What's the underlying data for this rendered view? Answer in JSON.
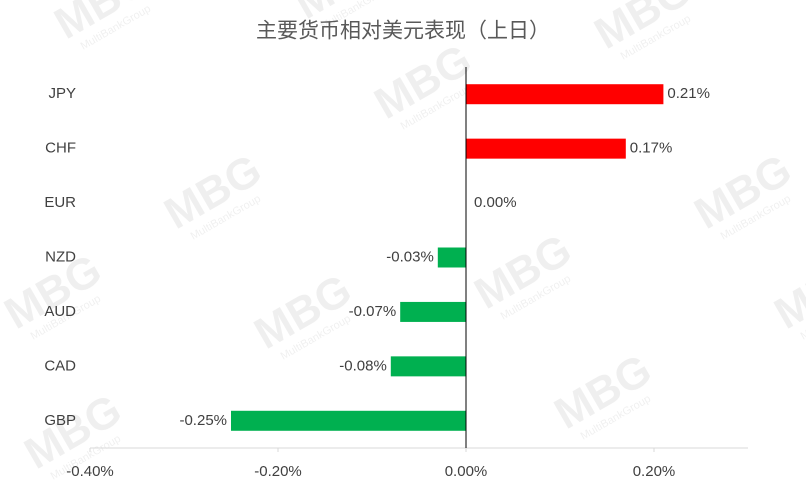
{
  "chart_data": {
    "type": "hbar",
    "title": "主要货币相对美元表现（上日）",
    "categories": [
      "JPY",
      "CHF",
      "EUR",
      "NZD",
      "AUD",
      "CAD",
      "GBP"
    ],
    "values": [
      0.21,
      0.17,
      0.0,
      -0.03,
      -0.07,
      -0.08,
      -0.25
    ],
    "value_labels": [
      "0.21%",
      "0.17%",
      "0.00%",
      "-0.03%",
      "-0.07%",
      "-0.08%",
      "-0.25%"
    ],
    "positive_color": "#ff0000",
    "negative_color": "#00b050",
    "xlim": [
      -0.4,
      0.3
    ],
    "xticks": [
      {
        "value": -0.4,
        "label": "-0.40%"
      },
      {
        "value": -0.2,
        "label": "-0.20%"
      },
      {
        "value": 0,
        "label": "0.00%"
      },
      {
        "value": 0.2,
        "label": "0.20%"
      }
    ],
    "watermark": {
      "logo": "MBG",
      "text": "MultiBankGroup"
    }
  }
}
